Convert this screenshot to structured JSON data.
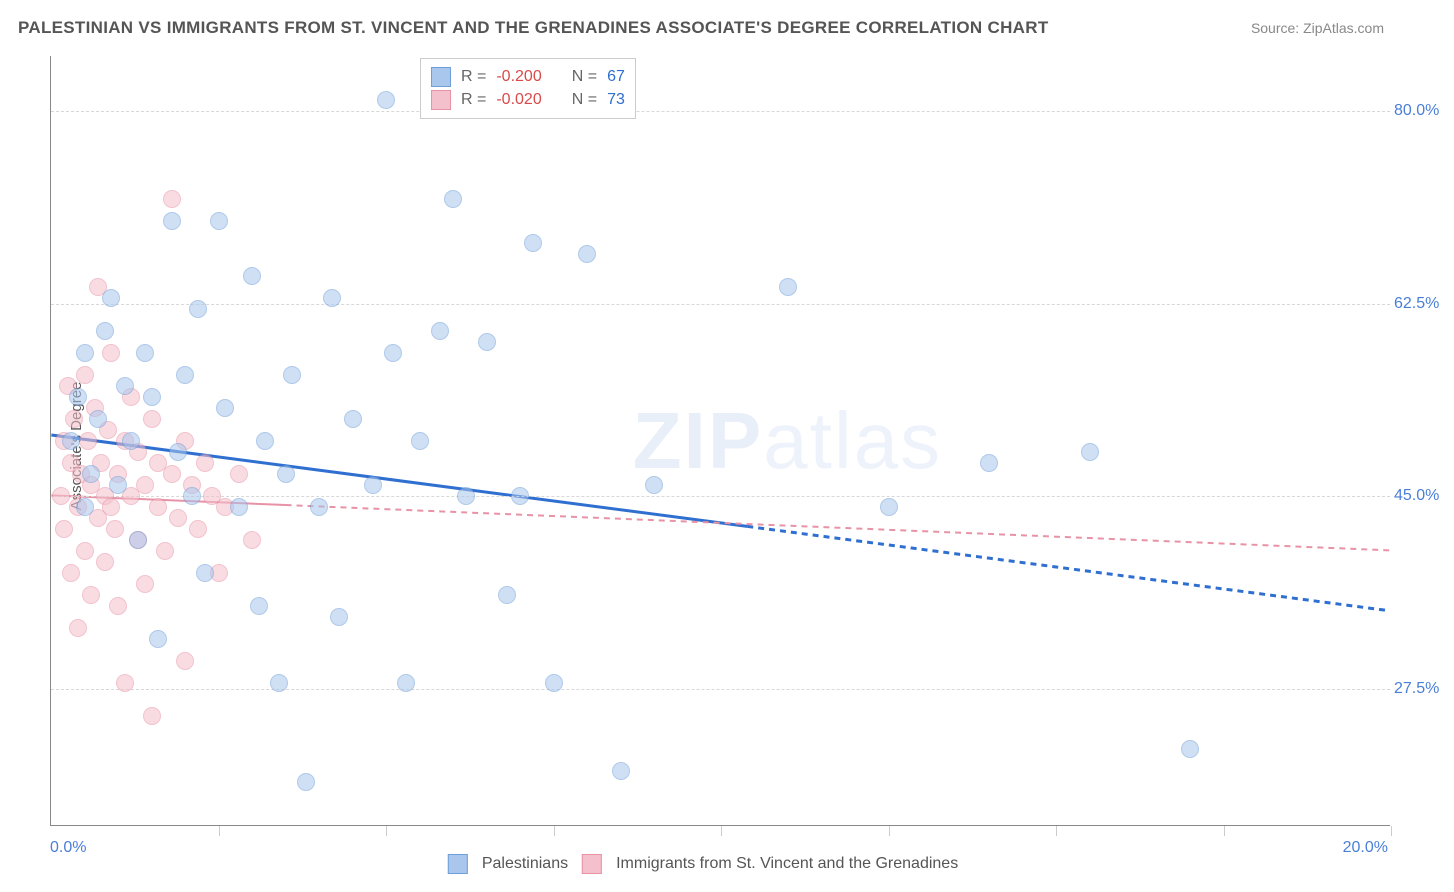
{
  "title": "PALESTINIAN VS IMMIGRANTS FROM ST. VINCENT AND THE GRENADINES ASSOCIATE'S DEGREE CORRELATION CHART",
  "source_label": "Source: ",
  "source_name": "ZipAtlas.com",
  "watermark_zip": "ZIP",
  "watermark_atlas": "atlas",
  "ylabel": "Associate's Degree",
  "chart": {
    "type": "scatter",
    "background": "#ffffff",
    "grid_color": "#d8d8d8",
    "axis_color": "#888888",
    "xlim": [
      0,
      20
    ],
    "ylim": [
      15,
      85
    ],
    "xticks": [
      0,
      2.5,
      5,
      7.5,
      10,
      12.5,
      15,
      17.5,
      20
    ],
    "xtick_labels_shown": {
      "0": "0.0%",
      "20": "20.0%"
    },
    "yticks": [
      27.5,
      45.0,
      62.5,
      80.0
    ],
    "ytick_labels": [
      "27.5%",
      "45.0%",
      "62.5%",
      "80.0%"
    ],
    "marker_radius": 9,
    "marker_opacity": 0.55,
    "series": [
      {
        "name": "Palestinians",
        "color_fill": "#a9c6ec",
        "color_stroke": "#6f9ed9",
        "R": "-0.200",
        "N": "67",
        "trend": {
          "x1": 0,
          "y1": 50.5,
          "x2": 20,
          "y2": 34.5,
          "stroke": "#2f6fd0",
          "width": 3,
          "solid_until_x": 10.4
        },
        "points": [
          [
            0.3,
            50
          ],
          [
            0.4,
            54
          ],
          [
            0.5,
            44
          ],
          [
            0.5,
            58
          ],
          [
            0.6,
            47
          ],
          [
            0.7,
            52
          ],
          [
            0.8,
            60
          ],
          [
            0.9,
            63
          ],
          [
            1.0,
            46
          ],
          [
            1.1,
            55
          ],
          [
            1.2,
            50
          ],
          [
            1.3,
            41
          ],
          [
            1.4,
            58
          ],
          [
            1.5,
            54
          ],
          [
            1.6,
            32
          ],
          [
            1.8,
            70
          ],
          [
            1.9,
            49
          ],
          [
            2.0,
            56
          ],
          [
            2.1,
            45
          ],
          [
            2.2,
            62
          ],
          [
            2.3,
            38
          ],
          [
            2.5,
            70
          ],
          [
            2.6,
            53
          ],
          [
            2.8,
            44
          ],
          [
            3.0,
            65
          ],
          [
            3.1,
            35
          ],
          [
            3.2,
            50
          ],
          [
            3.4,
            28
          ],
          [
            3.5,
            47
          ],
          [
            3.6,
            56
          ],
          [
            3.8,
            19
          ],
          [
            4.0,
            44
          ],
          [
            4.2,
            63
          ],
          [
            4.3,
            34
          ],
          [
            4.5,
            52
          ],
          [
            4.8,
            46
          ],
          [
            5.0,
            81
          ],
          [
            5.1,
            58
          ],
          [
            5.3,
            28
          ],
          [
            5.5,
            50
          ],
          [
            5.8,
            60
          ],
          [
            6.0,
            72
          ],
          [
            6.2,
            45
          ],
          [
            6.5,
            59
          ],
          [
            6.8,
            36
          ],
          [
            7.0,
            45
          ],
          [
            7.2,
            68
          ],
          [
            7.5,
            28
          ],
          [
            8.0,
            67
          ],
          [
            8.5,
            20
          ],
          [
            9.0,
            46
          ],
          [
            11.0,
            64
          ],
          [
            12.5,
            44
          ],
          [
            14.0,
            48
          ],
          [
            15.5,
            49
          ],
          [
            17.0,
            22
          ]
        ]
      },
      {
        "name": "Immigrants from St. Vincent and the Grenadines",
        "color_fill": "#f4c0cb",
        "color_stroke": "#e892a6",
        "R": "-0.020",
        "N": "73",
        "trend": {
          "x1": 0,
          "y1": 45,
          "x2": 20,
          "y2": 40,
          "stroke": "#e892a6",
          "width": 2,
          "solid_until_x": 3.5
        },
        "points": [
          [
            0.15,
            45
          ],
          [
            0.2,
            50
          ],
          [
            0.2,
            42
          ],
          [
            0.25,
            55
          ],
          [
            0.3,
            38
          ],
          [
            0.3,
            48
          ],
          [
            0.35,
            52
          ],
          [
            0.4,
            44
          ],
          [
            0.4,
            33
          ],
          [
            0.45,
            47
          ],
          [
            0.5,
            56
          ],
          [
            0.5,
            40
          ],
          [
            0.55,
            50
          ],
          [
            0.6,
            46
          ],
          [
            0.6,
            36
          ],
          [
            0.65,
            53
          ],
          [
            0.7,
            43
          ],
          [
            0.7,
            64
          ],
          [
            0.75,
            48
          ],
          [
            0.8,
            39
          ],
          [
            0.8,
            45
          ],
          [
            0.85,
            51
          ],
          [
            0.9,
            44
          ],
          [
            0.9,
            58
          ],
          [
            0.95,
            42
          ],
          [
            1.0,
            47
          ],
          [
            1.0,
            35
          ],
          [
            1.1,
            50
          ],
          [
            1.1,
            28
          ],
          [
            1.2,
            45
          ],
          [
            1.2,
            54
          ],
          [
            1.3,
            41
          ],
          [
            1.3,
            49
          ],
          [
            1.4,
            46
          ],
          [
            1.4,
            37
          ],
          [
            1.5,
            52
          ],
          [
            1.5,
            25
          ],
          [
            1.6,
            44
          ],
          [
            1.6,
            48
          ],
          [
            1.7,
            40
          ],
          [
            1.8,
            47
          ],
          [
            1.8,
            72
          ],
          [
            1.9,
            43
          ],
          [
            2.0,
            50
          ],
          [
            2.0,
            30
          ],
          [
            2.1,
            46
          ],
          [
            2.2,
            42
          ],
          [
            2.3,
            48
          ],
          [
            2.4,
            45
          ],
          [
            2.5,
            38
          ],
          [
            2.6,
            44
          ],
          [
            2.8,
            47
          ],
          [
            3.0,
            41
          ]
        ]
      }
    ]
  },
  "legend_top": {
    "r_label": "R =",
    "n_label": "N =",
    "r_color": "#d94a4a",
    "n_color": "#2f6fd0",
    "text_color": "#666666"
  },
  "legend_bottom": [
    {
      "label": "Palestinians",
      "fill": "#a9c6ec",
      "stroke": "#6f9ed9"
    },
    {
      "label": "Immigrants from St. Vincent and the Grenadines",
      "fill": "#f4c0cb",
      "stroke": "#e892a6"
    }
  ]
}
